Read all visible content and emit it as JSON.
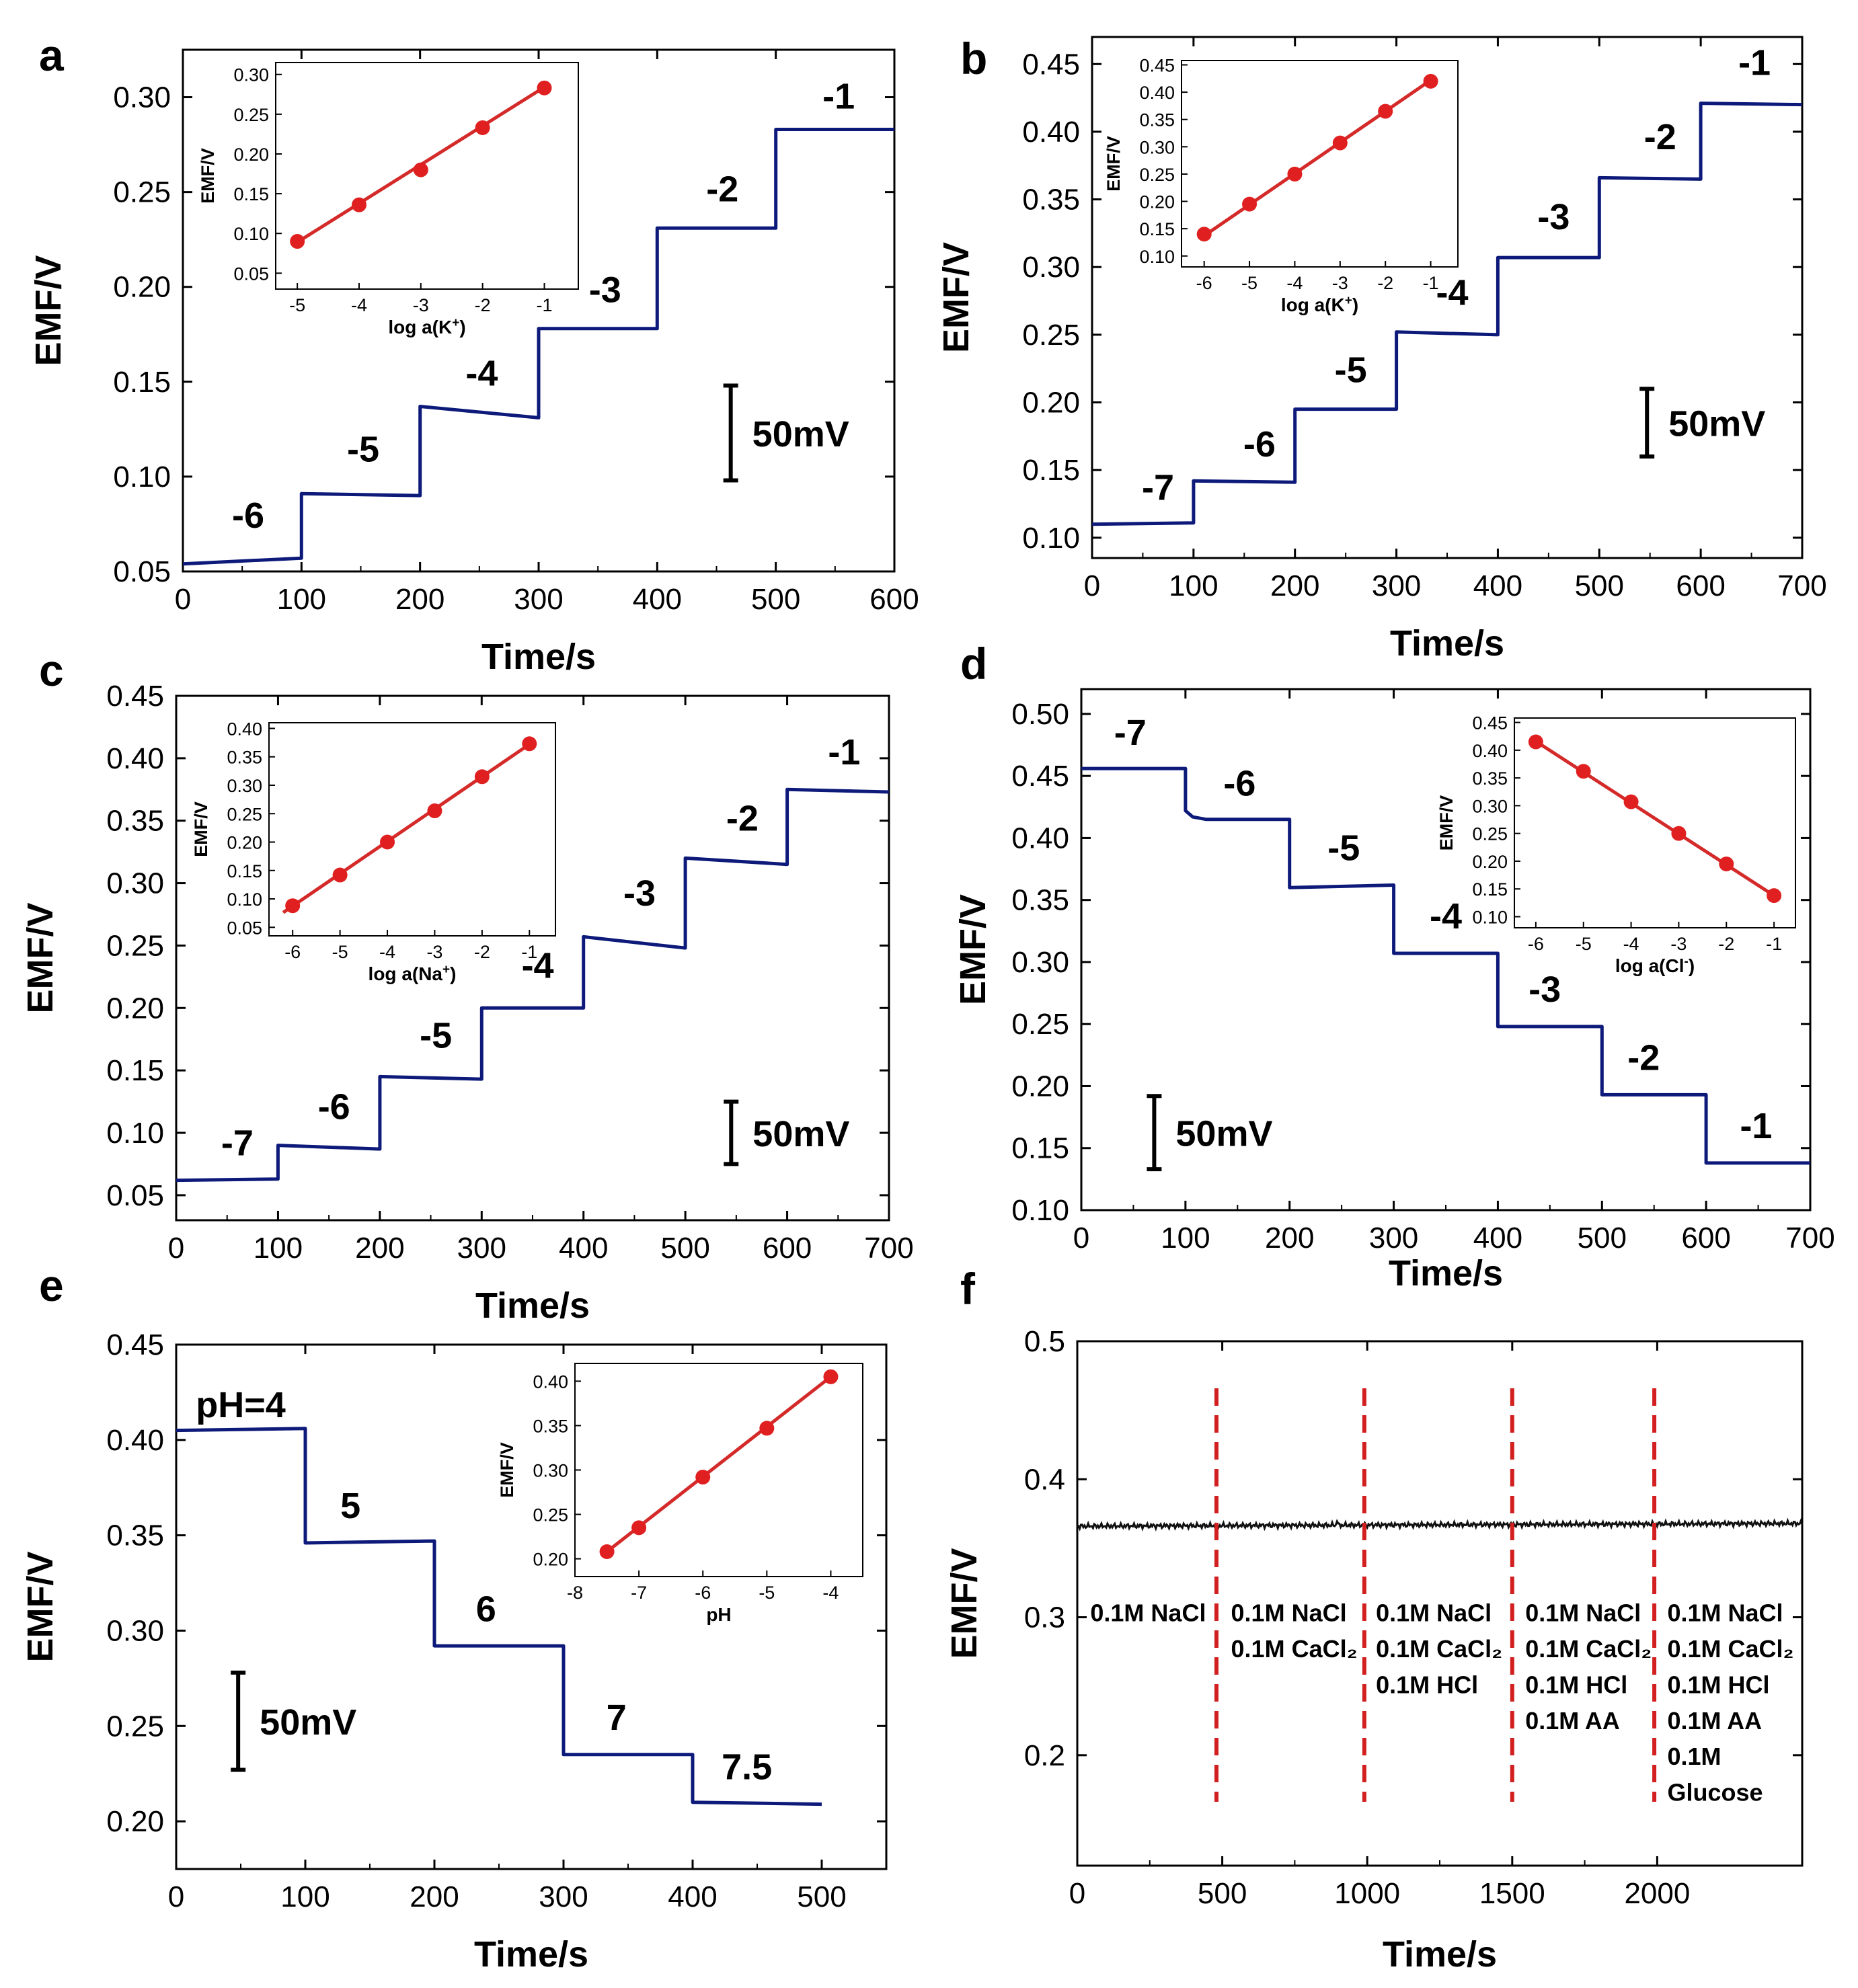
{
  "figure": {
    "colors": {
      "trace": "#0d1a7a",
      "fit": "#d42a2a",
      "point": "#e02020",
      "marker": "#d21f1f",
      "axis": "#000000",
      "noise": "#111111"
    }
  },
  "chart_data": [
    {
      "id": "a",
      "panel_label": "a",
      "type": "line",
      "xlabel": "Time/s",
      "ylabel": "EMF/V",
      "xlim": [
        0,
        600
      ],
      "ylim": [
        0.05,
        0.325
      ],
      "xticks": [
        0,
        100,
        200,
        300,
        400,
        500,
        600
      ],
      "yticks": [
        0.05,
        0.1,
        0.15,
        0.2,
        0.25,
        0.3
      ],
      "series": [
        {
          "name": "potential trace",
          "x": [
            0,
            100,
            100,
            200,
            200,
            300,
            300,
            400,
            400,
            500,
            500,
            600
          ],
          "y": [
            0.054,
            0.057,
            0.091,
            0.09,
            0.137,
            0.131,
            0.178,
            0.178,
            0.231,
            0.231,
            0.283,
            0.283
          ]
        }
      ],
      "step_labels": [
        {
          "text": "-6",
          "x": 55,
          "y": 0.073
        },
        {
          "text": "-5",
          "x": 152,
          "y": 0.108
        },
        {
          "text": "-4",
          "x": 252,
          "y": 0.148
        },
        {
          "text": "-3",
          "x": 356,
          "y": 0.192
        },
        {
          "text": "-2",
          "x": 455,
          "y": 0.245
        },
        {
          "text": "-1",
          "x": 553,
          "y": 0.294
        }
      ],
      "scale_bar": {
        "label": "50mV",
        "x": 462,
        "y0": 0.098,
        "y1": 0.148
      },
      "inset": {
        "xlabel": "log a(K+)",
        "xlabel_main": "log a(K",
        "xlabel_sup": "+",
        "xlabel_end": ")",
        "ylabel": "EMF/V",
        "xlim": [
          -5.35,
          -0.45
        ],
        "ylim": [
          0.03,
          0.315
        ],
        "xticks": [
          -5,
          -4,
          -3,
          -2,
          -1
        ],
        "xtick_labels": [
          "-5",
          "-4",
          "-3",
          "-2",
          "-1"
        ],
        "yticks": [
          0.05,
          0.1,
          0.15,
          0.2,
          0.25,
          0.3
        ],
        "ytick_labels": [
          "0.05",
          "0.10",
          "0.15",
          "0.20",
          "0.25",
          "0.30"
        ],
        "x": [
          -5,
          -4,
          -3,
          -2,
          -1
        ],
        "y": [
          0.09,
          0.136,
          0.18,
          0.233,
          0.283
        ],
        "fit": {
          "x": [
            -5,
            -1
          ],
          "y": [
            0.089,
            0.284
          ]
        }
      }
    },
    {
      "id": "b",
      "panel_label": "b",
      "type": "line",
      "xlabel": "Time/s",
      "ylabel": "EMF/V",
      "xlim": [
        0,
        700
      ],
      "ylim": [
        0.085,
        0.47
      ],
      "xticks": [
        0,
        100,
        200,
        300,
        400,
        500,
        600,
        700
      ],
      "yticks": [
        0.1,
        0.15,
        0.2,
        0.25,
        0.3,
        0.35,
        0.4,
        0.45
      ],
      "series": [
        {
          "name": "potential trace",
          "x": [
            0,
            100,
            100,
            200,
            200,
            300,
            300,
            400,
            400,
            500,
            500,
            600,
            600,
            700
          ],
          "y": [
            0.11,
            0.111,
            0.142,
            0.141,
            0.195,
            0.195,
            0.252,
            0.25,
            0.307,
            0.307,
            0.366,
            0.365,
            0.421,
            0.42
          ]
        }
      ],
      "step_labels": [
        {
          "text": "-7",
          "x": 65,
          "y": 0.128
        },
        {
          "text": "-6",
          "x": 165,
          "y": 0.16
        },
        {
          "text": "-5",
          "x": 255,
          "y": 0.215
        },
        {
          "text": "-4",
          "x": 355,
          "y": 0.272
        },
        {
          "text": "-3",
          "x": 455,
          "y": 0.328
        },
        {
          "text": "-2",
          "x": 560,
          "y": 0.387
        },
        {
          "text": "-1",
          "x": 653,
          "y": 0.442
        }
      ],
      "scale_bar": {
        "label": "50mV",
        "x": 547,
        "y0": 0.16,
        "y1": 0.21
      },
      "inset": {
        "xlabel": "log a(K+)",
        "xlabel_main": "log a(K",
        "xlabel_sup": "+",
        "xlabel_end": ")",
        "ylabel": "EMF/V",
        "xlim": [
          -6.5,
          -0.4
        ],
        "ylim": [
          0.08,
          0.458
        ],
        "xticks": [
          -6,
          -5,
          -4,
          -3,
          -2,
          -1
        ],
        "xtick_labels": [
          "-6",
          "-5",
          "-4",
          "-3",
          "-2",
          "-1"
        ],
        "yticks": [
          0.1,
          0.15,
          0.2,
          0.25,
          0.3,
          0.35,
          0.4,
          0.45
        ],
        "ytick_labels": [
          "0.10",
          "0.15",
          "0.20",
          "0.25",
          "0.30",
          "0.35",
          "0.40",
          "0.45"
        ],
        "x": [
          -6,
          -5,
          -4,
          -3,
          -2,
          -1
        ],
        "y": [
          0.14,
          0.195,
          0.25,
          0.307,
          0.365,
          0.42
        ],
        "fit": {
          "x": [
            -6,
            -1
          ],
          "y": [
            0.137,
            0.422
          ]
        }
      }
    },
    {
      "id": "c",
      "panel_label": "c",
      "type": "line",
      "xlabel": "Time/s",
      "ylabel": "EMF/V",
      "xlim": [
        0,
        700
      ],
      "ylim": [
        0.03,
        0.45
      ],
      "xticks": [
        0,
        100,
        200,
        300,
        400,
        500,
        600,
        700
      ],
      "yticks": [
        0.05,
        0.1,
        0.15,
        0.2,
        0.25,
        0.3,
        0.35,
        0.4,
        0.45
      ],
      "series": [
        {
          "name": "potential trace",
          "x": [
            0,
            100,
            100,
            200,
            200,
            300,
            300,
            400,
            400,
            500,
            500,
            600,
            600,
            700
          ],
          "y": [
            0.062,
            0.063,
            0.09,
            0.087,
            0.145,
            0.143,
            0.2,
            0.2,
            0.257,
            0.248,
            0.32,
            0.315,
            0.375,
            0.373
          ]
        }
      ],
      "step_labels": [
        {
          "text": "-7",
          "x": 60,
          "y": 0.082
        },
        {
          "text": "-6",
          "x": 155,
          "y": 0.111
        },
        {
          "text": "-5",
          "x": 255,
          "y": 0.168
        },
        {
          "text": "-4",
          "x": 355,
          "y": 0.224
        },
        {
          "text": "-3",
          "x": 455,
          "y": 0.282
        },
        {
          "text": "-2",
          "x": 556,
          "y": 0.342
        },
        {
          "text": "-1",
          "x": 656,
          "y": 0.395
        }
      ],
      "scale_bar": {
        "label": "50mV",
        "x": 545,
        "y0": 0.075,
        "y1": 0.125
      },
      "inset": {
        "xlabel": "log a(Na+)",
        "xlabel_main": "log a(Na",
        "xlabel_sup": "+",
        "xlabel_end": ")",
        "ylabel": "EMF/V",
        "xlim": [
          -6.5,
          -0.45
        ],
        "ylim": [
          0.035,
          0.41
        ],
        "xticks": [
          -6,
          -5,
          -4,
          -3,
          -2,
          -1
        ],
        "xtick_labels": [
          "-6",
          "-5",
          "-4",
          "-3",
          "-2",
          "-1"
        ],
        "yticks": [
          0.05,
          0.1,
          0.15,
          0.2,
          0.25,
          0.3,
          0.35,
          0.4
        ],
        "ytick_labels": [
          "0.05",
          "0.10",
          "0.15",
          "0.20",
          "0.25",
          "0.30",
          "0.35",
          "0.40"
        ],
        "x": [
          -6,
          -5,
          -4,
          -3,
          -2,
          -1
        ],
        "y": [
          0.088,
          0.142,
          0.2,
          0.255,
          0.315,
          0.373
        ],
        "fit": {
          "x": [
            -6.2,
            -1
          ],
          "y": [
            0.076,
            0.372
          ]
        }
      }
    },
    {
      "id": "d",
      "panel_label": "d",
      "type": "line",
      "xlabel": "Time/s",
      "ylabel": "EMF/V",
      "xlim": [
        0,
        700
      ],
      "ylim": [
        0.1,
        0.52
      ],
      "xticks": [
        0,
        100,
        200,
        300,
        400,
        500,
        600,
        700
      ],
      "yticks": [
        0.1,
        0.15,
        0.2,
        0.25,
        0.3,
        0.35,
        0.4,
        0.45,
        0.5
      ],
      "series": [
        {
          "name": "potential trace",
          "x": [
            0,
            100,
            100,
            107,
            120,
            200,
            200,
            300,
            300,
            400,
            400,
            500,
            500,
            600,
            600,
            700
          ],
          "y": [
            0.456,
            0.456,
            0.422,
            0.417,
            0.415,
            0.415,
            0.36,
            0.362,
            0.307,
            0.307,
            0.248,
            0.248,
            0.193,
            0.193,
            0.138,
            0.138
          ]
        }
      ],
      "step_labels": [
        {
          "text": "-7",
          "x": 47,
          "y": 0.475
        },
        {
          "text": "-6",
          "x": 152,
          "y": 0.434
        },
        {
          "text": "-5",
          "x": 252,
          "y": 0.382
        },
        {
          "text": "-4",
          "x": 350,
          "y": 0.327
        },
        {
          "text": "-3",
          "x": 445,
          "y": 0.268
        },
        {
          "text": "-2",
          "x": 540,
          "y": 0.213
        },
        {
          "text": "-1",
          "x": 648,
          "y": 0.158
        }
      ],
      "scale_bar": {
        "label": "50mV",
        "x": 70,
        "y0": 0.133,
        "y1": 0.192
      },
      "inset": {
        "xlabel": "log a(Cl-)",
        "xlabel_main": "log a(Cl",
        "xlabel_sup": "-",
        "xlabel_end": ")",
        "ylabel": "EMF/V",
        "xlim": [
          -6.45,
          -0.55
        ],
        "ylim": [
          0.08,
          0.458
        ],
        "xticks": [
          -6,
          -5,
          -4,
          -3,
          -2,
          -1
        ],
        "xtick_labels": [
          "-6",
          "-5",
          "-4",
          "-3",
          "-2",
          "-1"
        ],
        "yticks": [
          0.1,
          0.15,
          0.2,
          0.25,
          0.3,
          0.35,
          0.4,
          0.45
        ],
        "ytick_labels": [
          "0.10",
          "0.15",
          "0.20",
          "0.25",
          "0.30",
          "0.35",
          "0.40",
          "0.45"
        ],
        "x": [
          -6,
          -5,
          -4,
          -3,
          -2,
          -1
        ],
        "y": [
          0.415,
          0.362,
          0.307,
          0.25,
          0.195,
          0.138
        ],
        "fit": {
          "x": [
            -6,
            -1
          ],
          "y": [
            0.416,
            0.138
          ]
        }
      }
    },
    {
      "id": "e",
      "panel_label": "e",
      "type": "line",
      "xlabel": "Time/s",
      "ylabel": "EMF/V",
      "xlim": [
        0,
        550
      ],
      "ylim": [
        0.175,
        0.45
      ],
      "xticks": [
        0,
        100,
        200,
        300,
        400,
        500
      ],
      "yticks": [
        0.2,
        0.25,
        0.3,
        0.35,
        0.4,
        0.45
      ],
      "series": [
        {
          "name": "potential trace",
          "x": [
            0,
            100,
            100,
            200,
            200,
            300,
            300,
            400,
            400,
            500
          ],
          "y": [
            0.405,
            0.406,
            0.346,
            0.347,
            0.292,
            0.292,
            0.235,
            0.235,
            0.21,
            0.209
          ]
        }
      ],
      "step_labels": [
        {
          "text": "pH=4",
          "x": 50,
          "y": 0.412
        },
        {
          "text": "5",
          "x": 135,
          "y": 0.359
        },
        {
          "text": "6",
          "x": 240,
          "y": 0.305
        },
        {
          "text": "7",
          "x": 341,
          "y": 0.248
        },
        {
          "text": "7.5",
          "x": 442,
          "y": 0.222
        }
      ],
      "scale_bar": {
        "label": "50mV",
        "x": 48,
        "y0": 0.227,
        "y1": 0.278
      },
      "inset": {
        "xlabel": "pH",
        "xlabel_main": "pH",
        "xlabel_sup": "",
        "xlabel_end": "",
        "ylabel": "EMF/V",
        "xlim": [
          -8,
          -3.5
        ],
        "ylim": [
          0.18,
          0.42
        ],
        "xticks": [
          -8,
          -7,
          -6,
          -5,
          -4
        ],
        "xtick_labels": [
          "-8",
          "-7",
          "-6",
          "-5",
          "-4"
        ],
        "yticks": [
          0.2,
          0.25,
          0.3,
          0.35,
          0.4
        ],
        "ytick_labels": [
          "0.20",
          "0.25",
          "0.30",
          "0.35",
          "0.40"
        ],
        "x": [
          -7.5,
          -7,
          -6,
          -5,
          -4
        ],
        "y": [
          0.208,
          0.235,
          0.292,
          0.347,
          0.405
        ],
        "fit": {
          "x": [
            -7.5,
            -4
          ],
          "y": [
            0.208,
            0.405
          ]
        }
      }
    },
    {
      "id": "f",
      "panel_label": "f",
      "type": "line",
      "xlabel": "Time/s",
      "ylabel": "EMF/V",
      "xlim": [
        0,
        2500
      ],
      "ylim": [
        0.12,
        0.5
      ],
      "xticks": [
        0,
        500,
        1000,
        1500,
        2000
      ],
      "yticks": [
        0.2,
        0.3,
        0.4,
        0.5
      ],
      "series": [
        {
          "name": "potential trace",
          "x": [
            0,
            2500
          ],
          "y": [
            0.366,
            0.368
          ]
        }
      ],
      "additions_at": [
        480,
        990,
        1500,
        1990
      ],
      "annotations": [
        {
          "x": 45,
          "lines": [
            "0.1M NaCl"
          ]
        },
        {
          "x": 530,
          "lines": [
            "0.1M NaCl",
            "0.1M CaCl₂"
          ]
        },
        {
          "x": 1030,
          "lines": [
            "0.1M NaCl",
            "0.1M CaCl₂",
            "0.1M HCl"
          ]
        },
        {
          "x": 1545,
          "lines": [
            "0.1M NaCl",
            "0.1M CaCl₂",
            "0.1M HCl",
            "0.1M AA"
          ]
        },
        {
          "x": 2035,
          "lines": [
            "0.1M NaCl",
            "0.1M CaCl₂",
            "0.1M HCl",
            "0.1M AA",
            "0.1M",
            "Glucose"
          ]
        }
      ],
      "annotation_top_y": 0.297,
      "annotation_line_step": 0.026
    }
  ]
}
